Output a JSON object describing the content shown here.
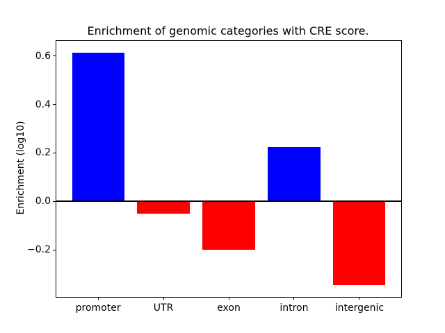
{
  "chart_data": {
    "type": "bar",
    "title": "Enrichment of genomic categories with CRE score.",
    "xlabel": "",
    "ylabel": "Enrichment (log10)",
    "categories": [
      "promoter",
      "UTR",
      "exon",
      "intron",
      "intergenic"
    ],
    "values": [
      0.614,
      -0.051,
      -0.2,
      0.224,
      -0.346
    ],
    "bar_colors": [
      "#0000ff",
      "#ff0000",
      "#ff0000",
      "#0000ff",
      "#ff0000"
    ],
    "positive_color": "#0000ff",
    "negative_color": "#ff0000",
    "yticks": [
      0.6,
      0.4,
      0.2,
      0.0,
      -0.2
    ],
    "ylim": [
      -0.394,
      0.662
    ],
    "xlim": [
      -0.64,
      4.64
    ],
    "bar_width": 0.8,
    "zero_line": true,
    "grid": false,
    "legend": null
  }
}
